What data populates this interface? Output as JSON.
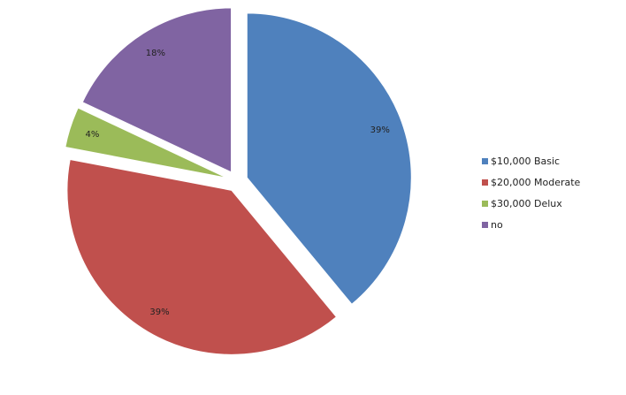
{
  "chart_data": {
    "type": "pie",
    "exploded": true,
    "legend_position": "right",
    "title": "",
    "slices": [
      {
        "label": "$10,000 Basic",
        "value": 39,
        "value_label": "39%",
        "color": "#4F81BD"
      },
      {
        "label": "$20,000 Moderate",
        "value": 39,
        "value_label": "39%",
        "color": "#C0504D"
      },
      {
        "label": "$30,000 Delux",
        "value": 4,
        "value_label": "4%",
        "color": "#9BBB59"
      },
      {
        "label": "no",
        "value": 18,
        "value_label": "18%",
        "color": "#8064A2"
      }
    ]
  }
}
